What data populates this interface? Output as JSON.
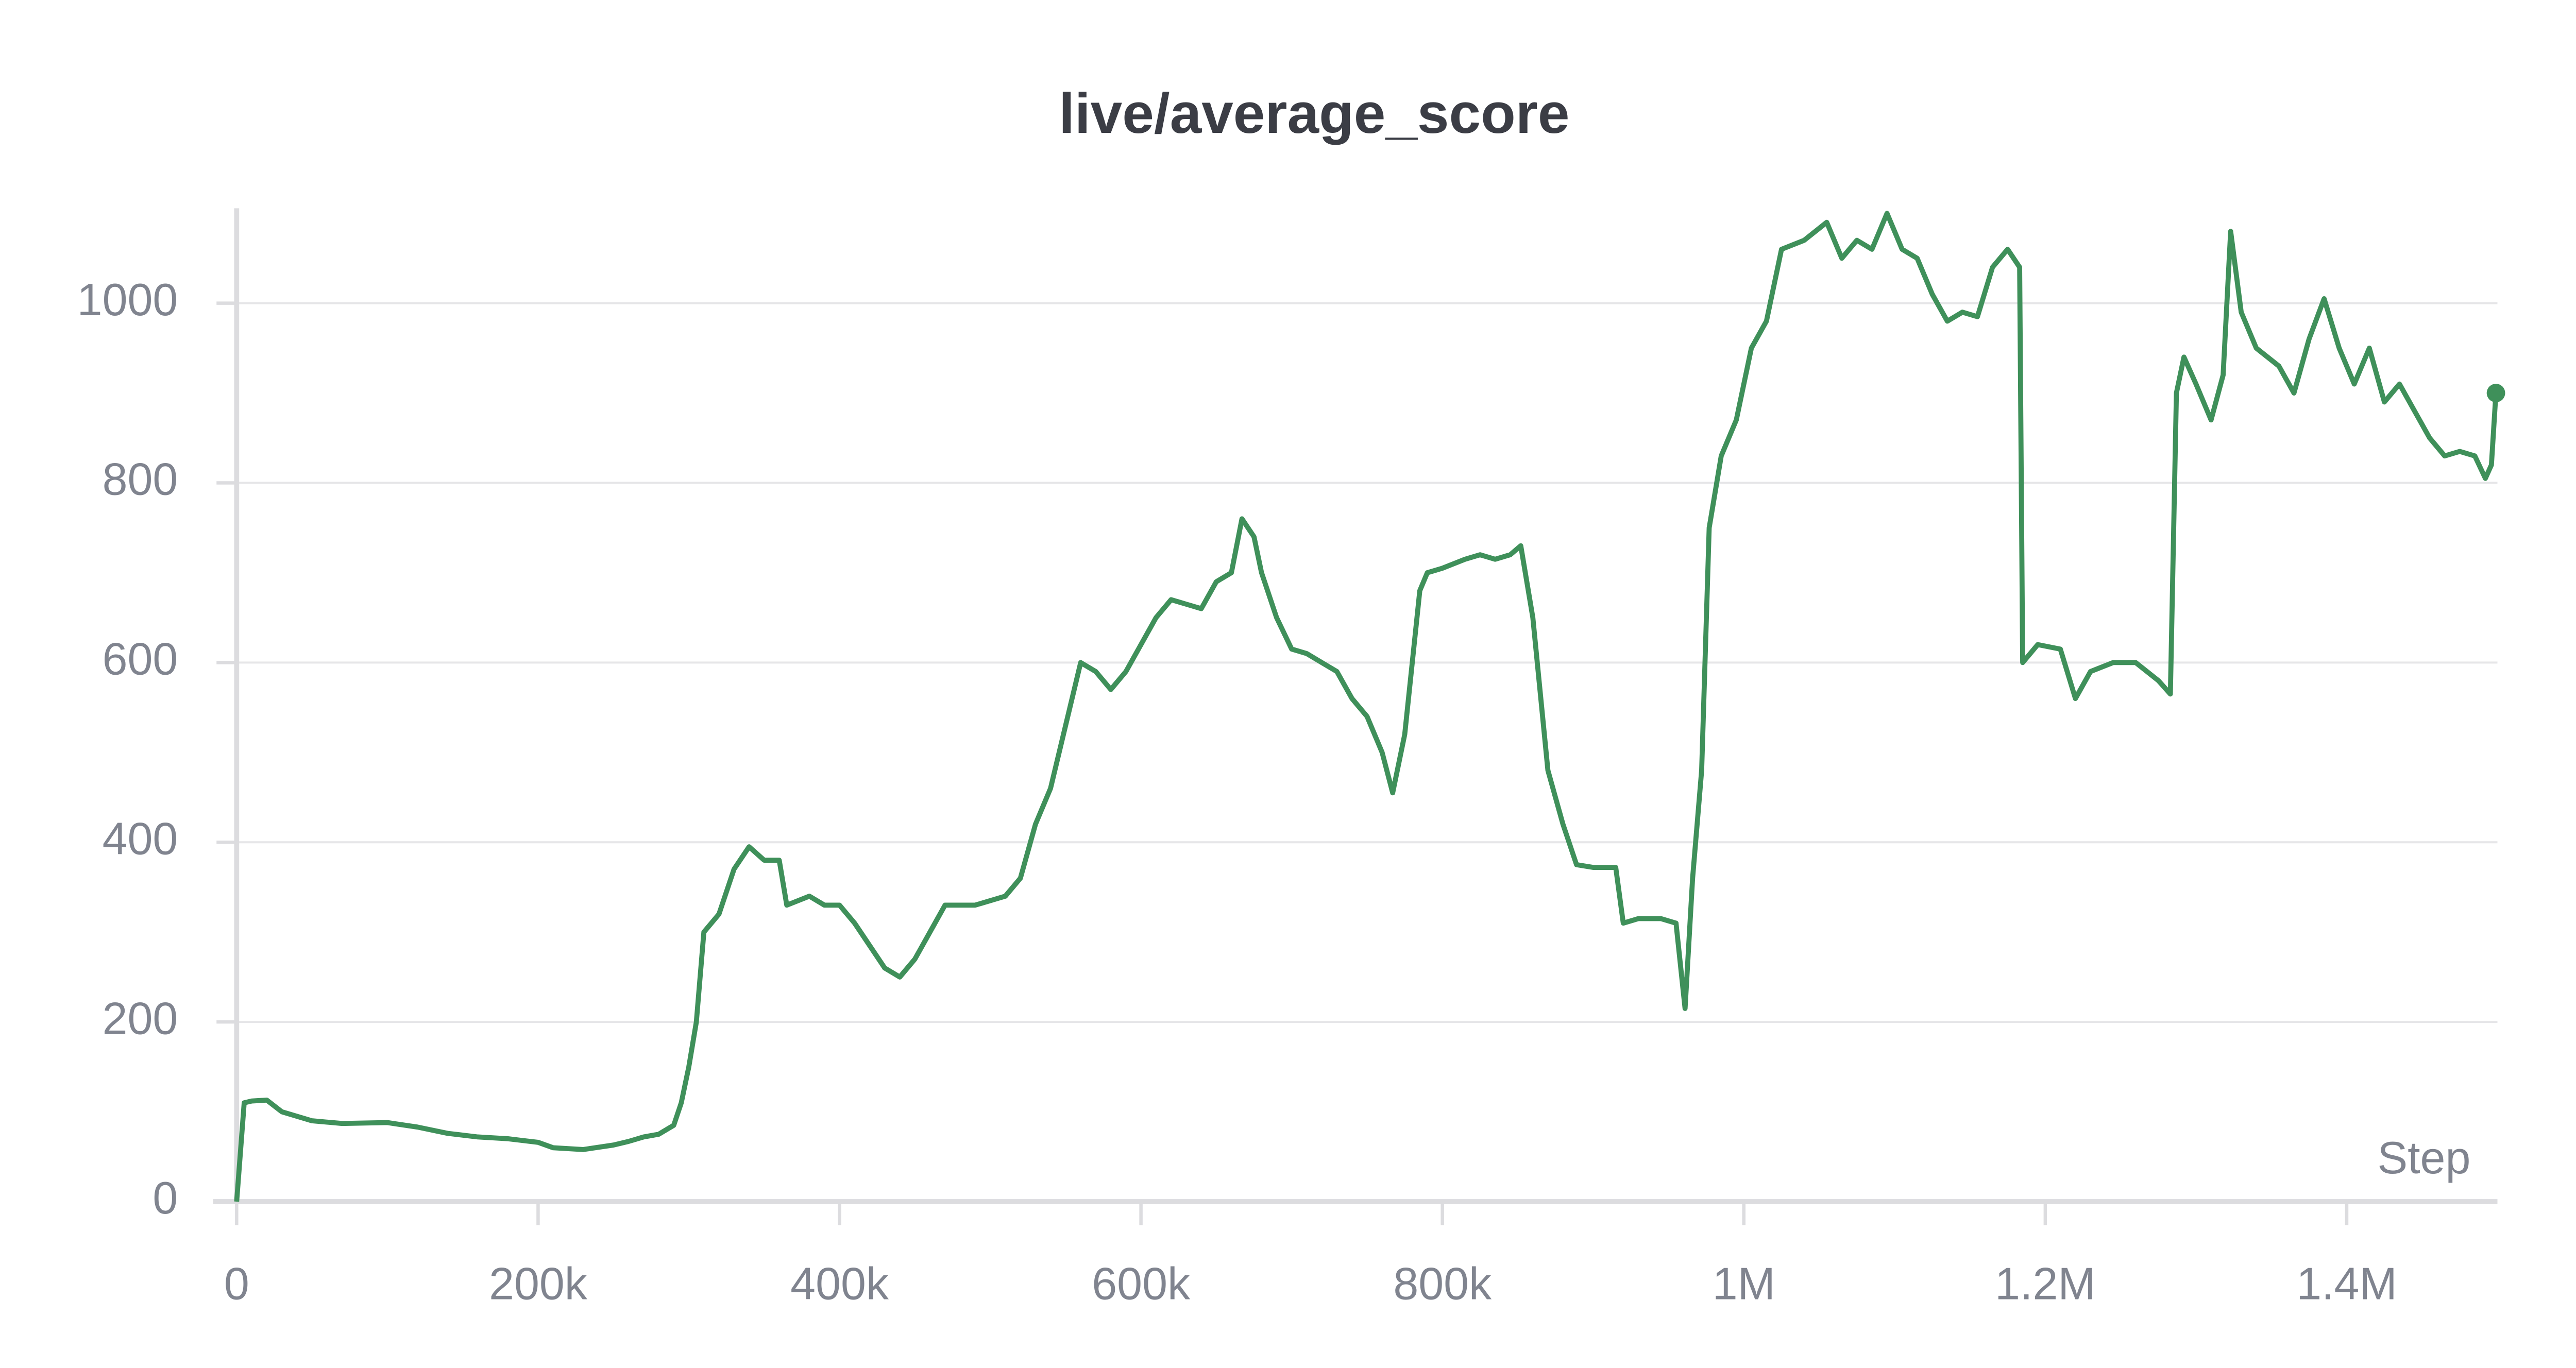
{
  "chart_data": {
    "type": "line",
    "title": "live/average_score",
    "x_label": "Step",
    "color": "#3f905a",
    "grid": true,
    "xlim": [
      0,
      1500000
    ],
    "ylim": [
      0,
      1100
    ],
    "xticks": [
      0,
      {
        "value": 200000,
        "label": "200k"
      },
      {
        "value": 400000,
        "label": "400k"
      },
      {
        "value": 600000,
        "label": "600k"
      },
      {
        "value": 800000,
        "label": "800k"
      },
      {
        "value": 1000000,
        "label": "1M"
      },
      {
        "value": 1200000,
        "label": "1.2M"
      },
      {
        "value": 1400000,
        "label": "1.4M"
      }
    ],
    "yticks": [
      0,
      200,
      400,
      600,
      800,
      1000
    ],
    "x": [
      0,
      5000,
      10000,
      20000,
      30000,
      40000,
      50000,
      70000,
      100000,
      120000,
      140000,
      160000,
      180000,
      200000,
      210000,
      230000,
      250000,
      260000,
      270000,
      280000,
      290000,
      295000,
      300000,
      305000,
      310000,
      320000,
      330000,
      340000,
      350000,
      360000,
      365000,
      380000,
      390000,
      400000,
      410000,
      420000,
      430000,
      440000,
      450000,
      460000,
      470000,
      490000,
      510000,
      520000,
      530000,
      540000,
      550000,
      560000,
      570000,
      580000,
      590000,
      600000,
      610000,
      620000,
      630000,
      640000,
      650000,
      660000,
      667000,
      675000,
      680000,
      690000,
      700000,
      710000,
      720000,
      730000,
      740000,
      750000,
      760000,
      767000,
      775000,
      785000,
      790000,
      800000,
      815000,
      825000,
      835000,
      845000,
      852000,
      860000,
      870000,
      880000,
      889000,
      900000,
      915000,
      920000,
      930000,
      945000,
      955000,
      961000,
      966000,
      972000,
      977000,
      985000,
      995000,
      1005000,
      1015000,
      1025000,
      1040000,
      1055000,
      1065000,
      1075000,
      1085000,
      1095000,
      1105000,
      1115000,
      1125000,
      1135000,
      1145000,
      1155000,
      1165000,
      1175000,
      1183000,
      1185000,
      1195000,
      1210000,
      1220000,
      1230000,
      1245000,
      1260000,
      1275000,
      1283000,
      1287000,
      1292000,
      1300000,
      1310000,
      1318000,
      1323000,
      1330000,
      1340000,
      1355000,
      1365000,
      1375000,
      1385000,
      1395000,
      1405000,
      1415000,
      1425000,
      1435000,
      1445000,
      1455000,
      1465000,
      1475000,
      1485000,
      1492000,
      1496000,
      1499000
    ],
    "values": [
      0,
      110,
      112,
      113,
      100,
      95,
      90,
      87,
      88,
      83,
      76,
      72,
      70,
      66,
      60,
      58,
      63,
      67,
      72,
      75,
      85,
      110,
      150,
      200,
      300,
      320,
      370,
      395,
      380,
      380,
      330,
      340,
      330,
      330,
      310,
      285,
      260,
      250,
      270,
      300,
      330,
      330,
      340,
      360,
      420,
      460,
      530,
      600,
      590,
      570,
      590,
      620,
      650,
      670,
      665,
      660,
      690,
      700,
      760,
      740,
      700,
      650,
      615,
      610,
      600,
      590,
      560,
      540,
      500,
      455,
      520,
      680,
      700,
      705,
      715,
      720,
      715,
      720,
      730,
      650,
      480,
      420,
      375,
      372,
      372,
      310,
      315,
      315,
      310,
      215,
      360,
      480,
      750,
      830,
      870,
      950,
      980,
      1060,
      1070,
      1090,
      1050,
      1070,
      1060,
      1100,
      1060,
      1050,
      1010,
      980,
      990,
      985,
      1040,
      1060,
      1040,
      600,
      620,
      615,
      560,
      590,
      600,
      600,
      580,
      565,
      900,
      940,
      910,
      870,
      920,
      1080,
      990,
      950,
      930,
      900,
      960,
      1005,
      950,
      910,
      950,
      890,
      910,
      880,
      850,
      830,
      835,
      830,
      805,
      820,
      900
    ]
  }
}
